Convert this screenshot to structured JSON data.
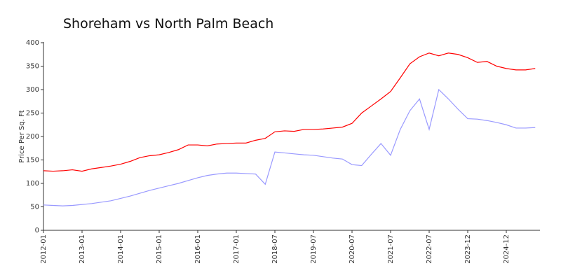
{
  "chart_data": {
    "type": "line",
    "title": "Shoreham vs North Palm Beach",
    "y_label": "Price Per Sq. Ft",
    "categories": [
      "2012-01",
      null,
      null,
      null,
      "2013-01",
      null,
      null,
      null,
      "2014-01",
      null,
      null,
      null,
      "2015-01",
      null,
      null,
      null,
      "2016-01",
      null,
      null,
      null,
      "2017-01",
      null,
      null,
      null,
      "2018-07",
      null,
      null,
      null,
      "2019-07",
      null,
      null,
      null,
      "2020-07",
      null,
      null,
      null,
      "2021-07",
      null,
      null,
      null,
      "2022-07",
      null,
      null,
      null,
      "2023-12",
      null,
      null,
      null,
      "2024-12",
      null,
      null,
      null
    ],
    "series": [
      {
        "name": "Shoreham",
        "color": "#ff0000",
        "values": [
          127,
          126,
          127,
          129,
          126,
          131,
          134,
          137,
          141,
          147,
          155,
          159,
          161,
          166,
          172,
          182,
          182,
          180,
          184,
          185,
          186,
          186,
          192,
          196,
          210,
          212,
          211,
          215,
          215,
          216,
          218,
          220,
          228,
          250,
          265,
          280,
          296,
          325,
          355,
          370,
          378,
          372,
          378,
          375,
          368,
          358,
          360,
          350,
          345,
          342,
          342,
          345
        ]
      },
      {
        "name": "North Palm Beach",
        "color": "#9999ff",
        "values": [
          54,
          53,
          52,
          53,
          55,
          57,
          60,
          63,
          68,
          73,
          79,
          85,
          90,
          95,
          100,
          106,
          112,
          117,
          120,
          122,
          122,
          121,
          120,
          98,
          167,
          165,
          163,
          161,
          160,
          157,
          154,
          152,
          140,
          138,
          162,
          185,
          160,
          215,
          255,
          280,
          215,
          300,
          280,
          258,
          238,
          237,
          234,
          230,
          225,
          218,
          218,
          219
        ]
      }
    ],
    "ylim": [
      0,
      400
    ],
    "yticks": [
      0,
      50,
      100,
      150,
      200,
      250,
      300,
      350,
      400
    ]
  }
}
